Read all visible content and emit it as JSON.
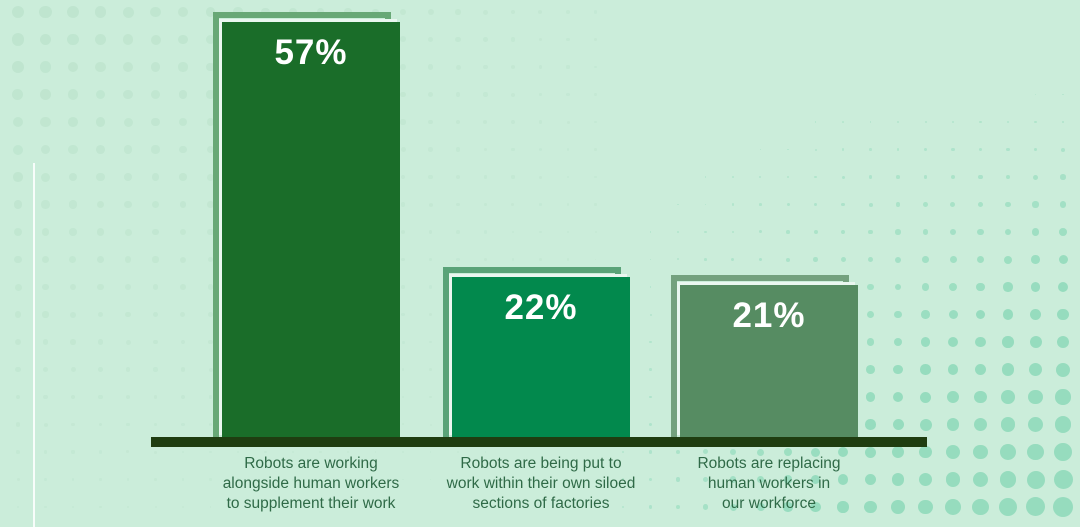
{
  "chart_data": {
    "type": "bar",
    "unit": "%",
    "title": "",
    "bars": [
      {
        "value": 57,
        "value_label": "57%",
        "category": "Robots are working alongside human workers to supplement their work",
        "category_lines": [
          "Robots are working",
          "alongside human workers",
          "to supplement their work"
        ],
        "fill_color": "#1a6d29",
        "outline_color": "#68a876"
      },
      {
        "value": 22,
        "value_label": "22%",
        "category": "Robots are being put to work within their own siloed sections of factories",
        "category_lines": [
          "Robots are being put to",
          "work within their own siloed",
          "sections of factories"
        ],
        "fill_color": "#02894d",
        "outline_color": "#5aa378"
      },
      {
        "value": 21,
        "value_label": "21%",
        "category": "Robots are replacing human workers in our workforce",
        "category_lines": [
          "Robots are replacing",
          "human workers in",
          "our workforce"
        ],
        "fill_color": "#568c62",
        "outline_color": "#74a17e"
      }
    ],
    "ylim": [
      0,
      60
    ],
    "baseline_color": "#1f3d10",
    "value_text_color": "#ffffff",
    "category_text_color": "#2f6a47"
  },
  "background": {
    "canvas_color": "#cbedda",
    "halftone_dot_left_color": "#bfe5cf",
    "halftone_dot_right_color": "#96dcbe",
    "inner_edge_color": "#eaf7f0",
    "accent_line_color": "#ffffff"
  }
}
